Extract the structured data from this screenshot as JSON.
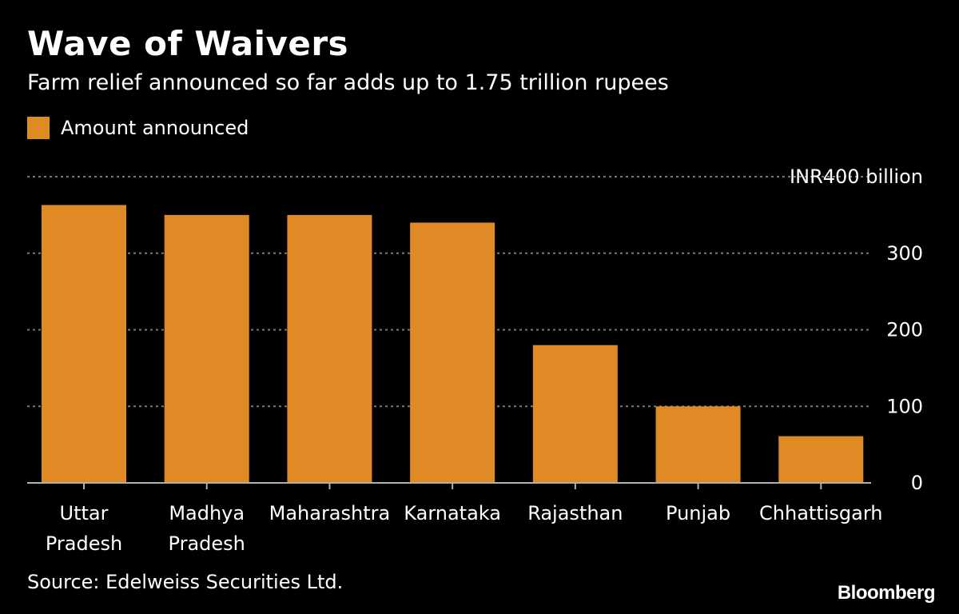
{
  "chart_data": {
    "type": "bar",
    "title": "Wave of Waivers",
    "subtitle": "Farm relief announced so far adds up to 1.75 trillion rupees",
    "legend": {
      "label": "Amount announced",
      "placement": "top-left"
    },
    "categories": [
      [
        "Uttar",
        "Pradesh"
      ],
      [
        "Madhya",
        "Pradesh"
      ],
      [
        "Maharashtra"
      ],
      [
        "Karnataka"
      ],
      [
        "Rajasthan"
      ],
      [
        "Punjab"
      ],
      [
        "Chhattisgarh"
      ]
    ],
    "values": [
      363,
      350,
      350,
      340,
      180,
      100,
      61
    ],
    "ylim": [
      0,
      400
    ],
    "yticks": [
      0,
      100,
      200,
      300,
      400
    ],
    "ytick_labels": [
      "0",
      "100",
      "200",
      "300",
      "INR400 billion"
    ],
    "y_axis_position": "right",
    "grid": true,
    "xlabel": "",
    "ylabel": ""
  },
  "colors": {
    "background": "#000000",
    "bar": "#df8a25",
    "text": "#ffffff",
    "grid": "#7a7a7a",
    "axis": "#b0b0b0"
  },
  "footer": {
    "source": "Source: Edelweiss Securities Ltd.",
    "brand": "Bloomberg"
  }
}
